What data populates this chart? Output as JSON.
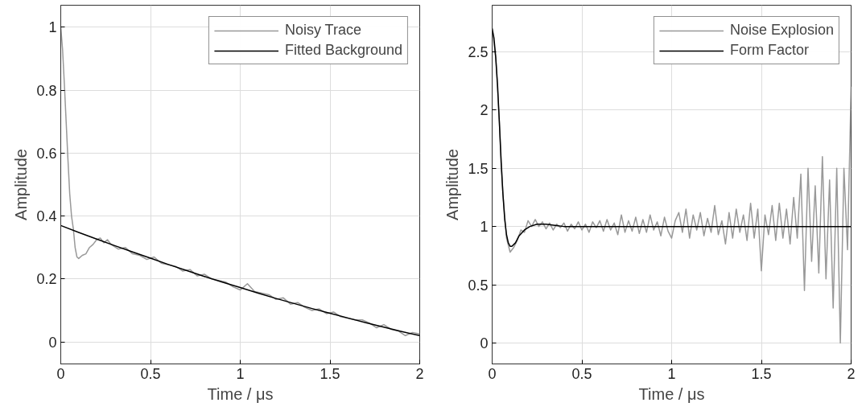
{
  "chart_data": [
    {
      "type": "line",
      "xlabel": "Time / μs",
      "ylabel": "Amplitude",
      "xlim": [
        0,
        2
      ],
      "ylim": [
        -0.07,
        1.07
      ],
      "xticks": [
        0,
        0.5,
        1,
        1.5,
        2
      ],
      "yticks": [
        0,
        0.2,
        0.4,
        0.6,
        0.8,
        1
      ],
      "grid": true,
      "legend": "top right",
      "series": [
        {
          "name": "Noisy Trace",
          "color": "#999999",
          "x": [
            0,
            0.01,
            0.02,
            0.03,
            0.04,
            0.05,
            0.06,
            0.07,
            0.08,
            0.09,
            0.1,
            0.12,
            0.14,
            0.16,
            0.18,
            0.2,
            0.22,
            0.24,
            0.26,
            0.28,
            0.32,
            0.36,
            0.4,
            0.44,
            0.48,
            0.52,
            0.56,
            0.6,
            0.64,
            0.68,
            0.72,
            0.76,
            0.8,
            0.84,
            0.88,
            0.92,
            0.96,
            1.0,
            1.04,
            1.08,
            1.12,
            1.16,
            1.2,
            1.24,
            1.28,
            1.32,
            1.36,
            1.4,
            1.44,
            1.48,
            1.52,
            1.56,
            1.6,
            1.64,
            1.68,
            1.72,
            1.76,
            1.8,
            1.84,
            1.88,
            1.92,
            1.96,
            2.0
          ],
          "values": [
            1.0,
            0.93,
            0.82,
            0.7,
            0.58,
            0.47,
            0.4,
            0.36,
            0.3,
            0.27,
            0.265,
            0.275,
            0.28,
            0.3,
            0.31,
            0.325,
            0.33,
            0.315,
            0.325,
            0.31,
            0.295,
            0.3,
            0.28,
            0.275,
            0.262,
            0.27,
            0.25,
            0.245,
            0.24,
            0.225,
            0.23,
            0.21,
            0.215,
            0.2,
            0.195,
            0.19,
            0.175,
            0.165,
            0.185,
            0.16,
            0.155,
            0.15,
            0.135,
            0.14,
            0.12,
            0.125,
            0.11,
            0.1,
            0.105,
            0.09,
            0.095,
            0.08,
            0.075,
            0.07,
            0.07,
            0.06,
            0.045,
            0.055,
            0.04,
            0.035,
            0.02,
            0.03,
            0.025
          ]
        },
        {
          "name": "Fitted Background",
          "color": "#000000",
          "x": [
            0,
            0.1,
            0.2,
            0.3,
            0.4,
            0.5,
            0.6,
            0.7,
            0.8,
            0.9,
            1.0,
            1.1,
            1.2,
            1.3,
            1.4,
            1.5,
            1.6,
            1.7,
            1.8,
            1.9,
            2.0
          ],
          "values": [
            0.37,
            0.348,
            0.327,
            0.306,
            0.286,
            0.266,
            0.246,
            0.227,
            0.208,
            0.19,
            0.173,
            0.155,
            0.138,
            0.122,
            0.106,
            0.091,
            0.076,
            0.061,
            0.047,
            0.033,
            0.02
          ]
        }
      ]
    },
    {
      "type": "line",
      "xlabel": "Time / μs",
      "ylabel": "Amplitude",
      "xlim": [
        0,
        2
      ],
      "ylim": [
        -0.18,
        2.9
      ],
      "xticks": [
        0,
        0.5,
        1,
        1.5,
        2
      ],
      "yticks": [
        0,
        0.5,
        1,
        1.5,
        2,
        2.5
      ],
      "grid": true,
      "legend": "top right",
      "series": [
        {
          "name": "Noise Explosion",
          "color": "#999999",
          "x": [
            0,
            0.02,
            0.04,
            0.06,
            0.08,
            0.1,
            0.12,
            0.14,
            0.16,
            0.18,
            0.2,
            0.22,
            0.24,
            0.26,
            0.28,
            0.3,
            0.32,
            0.34,
            0.36,
            0.38,
            0.4,
            0.42,
            0.44,
            0.46,
            0.48,
            0.5,
            0.52,
            0.54,
            0.56,
            0.58,
            0.6,
            0.62,
            0.64,
            0.66,
            0.68,
            0.7,
            0.72,
            0.74,
            0.76,
            0.78,
            0.8,
            0.82,
            0.84,
            0.86,
            0.88,
            0.9,
            0.92,
            0.94,
            0.96,
            0.98,
            1.0,
            1.02,
            1.04,
            1.06,
            1.08,
            1.1,
            1.12,
            1.14,
            1.16,
            1.18,
            1.2,
            1.22,
            1.24,
            1.26,
            1.28,
            1.3,
            1.32,
            1.34,
            1.36,
            1.38,
            1.4,
            1.42,
            1.44,
            1.46,
            1.48,
            1.5,
            1.52,
            1.54,
            1.56,
            1.58,
            1.6,
            1.62,
            1.64,
            1.66,
            1.68,
            1.7,
            1.72,
            1.74,
            1.76,
            1.78,
            1.8,
            1.82,
            1.84,
            1.86,
            1.88,
            1.9,
            1.92,
            1.94,
            1.96,
            1.98,
            2.0
          ],
          "values": [
            2.7,
            2.45,
            1.9,
            1.28,
            0.9,
            0.78,
            0.82,
            0.88,
            0.97,
            0.95,
            1.05,
            1.0,
            1.06,
            1.0,
            1.04,
            0.98,
            1.03,
            0.97,
            1.02,
            0.99,
            1.03,
            0.96,
            1.02,
            0.98,
            1.04,
            0.97,
            1.02,
            0.95,
            1.04,
            0.99,
            1.05,
            0.96,
            1.06,
            0.97,
            1.03,
            0.93,
            1.1,
            0.95,
            1.05,
            0.96,
            1.08,
            0.94,
            1.06,
            0.95,
            1.1,
            0.97,
            1.04,
            0.92,
            1.08,
            0.96,
            0.9,
            1.05,
            1.12,
            0.95,
            1.15,
            0.9,
            1.1,
            0.97,
            1.12,
            0.92,
            1.07,
            0.95,
            1.18,
            0.93,
            1.05,
            0.85,
            1.12,
            0.9,
            1.15,
            0.95,
            1.1,
            0.88,
            1.2,
            0.9,
            1.15,
            0.62,
            1.1,
            0.93,
            1.18,
            0.88,
            1.2,
            0.9,
            1.15,
            0.85,
            1.25,
            0.9,
            1.45,
            0.45,
            1.5,
            0.7,
            1.35,
            0.6,
            1.6,
            0.55,
            1.4,
            0.3,
            1.5,
            0.0,
            1.5,
            0.8,
            2.2
          ]
        },
        {
          "name": "Form Factor",
          "color": "#000000",
          "x": [
            0,
            0.01,
            0.02,
            0.03,
            0.04,
            0.05,
            0.06,
            0.07,
            0.08,
            0.09,
            0.1,
            0.11,
            0.13,
            0.15,
            0.18,
            0.21,
            0.25,
            0.3,
            0.35,
            0.4,
            2.0
          ],
          "values": [
            2.7,
            2.62,
            2.45,
            2.22,
            1.9,
            1.55,
            1.28,
            1.06,
            0.93,
            0.86,
            0.83,
            0.83,
            0.86,
            0.92,
            0.97,
            1.0,
            1.02,
            1.02,
            1.01,
            1.0,
            1.0
          ]
        }
      ]
    }
  ]
}
